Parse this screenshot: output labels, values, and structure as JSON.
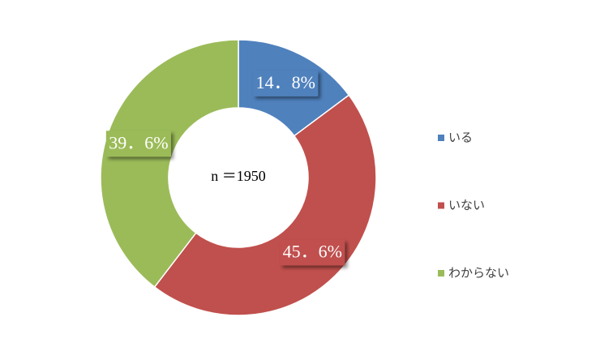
{
  "chart_data": {
    "type": "donut",
    "categories": [
      "いる",
      "いない",
      "わからない"
    ],
    "values": [
      14.8,
      45.6,
      39.6
    ],
    "value_labels": [
      "14．8%",
      "45．6%",
      "39．6%"
    ],
    "colors": [
      "#4f81bd",
      "#c0504d",
      "#9bbb59"
    ],
    "annotation": "n ＝1950",
    "legend": "right"
  }
}
